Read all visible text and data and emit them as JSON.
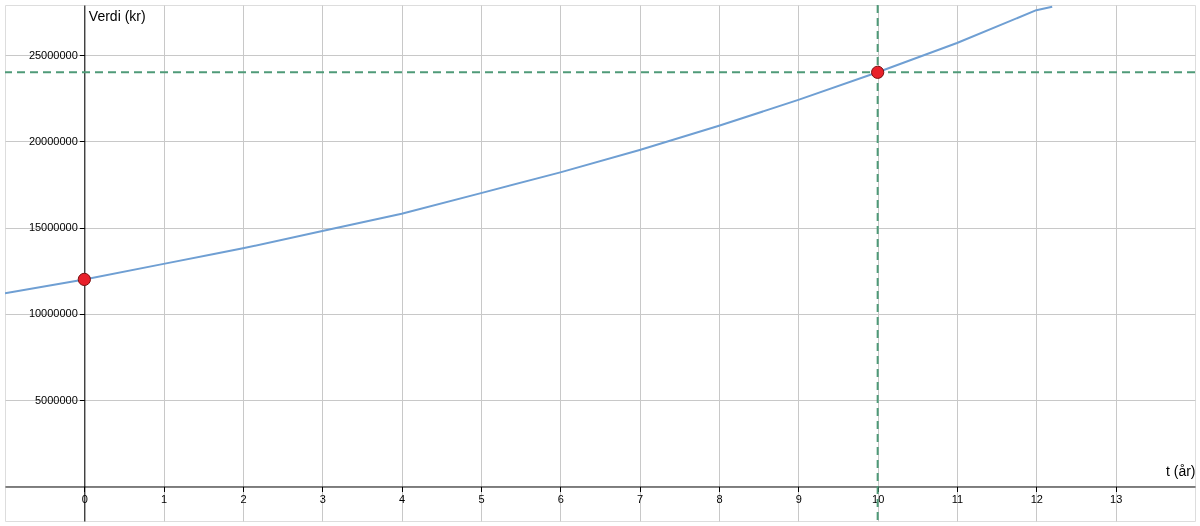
{
  "chart_data": {
    "type": "line",
    "xlabel": "t (år)",
    "ylabel": "Verdi (kr)",
    "xlim": [
      -1,
      14
    ],
    "ylim": [
      -2000000,
      27900000
    ],
    "xticks": [
      0,
      1,
      2,
      3,
      4,
      5,
      6,
      7,
      8,
      9,
      10,
      11,
      12,
      13
    ],
    "yticks": [
      5000000,
      10000000,
      15000000,
      20000000,
      25000000
    ],
    "grid": true,
    "series": [
      {
        "color": "#6f9fd3",
        "marker": "none",
        "x": [
          -1,
          0,
          1,
          2,
          3,
          4,
          5,
          6,
          7,
          8,
          9,
          10,
          11,
          12,
          12.2
        ],
        "values": [
          11200000,
          12000000,
          12900000,
          13800000,
          14800000,
          15800000,
          17000000,
          18200000,
          19500000,
          20900000,
          22400000,
          24000000,
          25700000,
          27600000,
          27800000
        ]
      },
      {
        "type": "scatter",
        "color": "#e8202a",
        "marker": "circle",
        "x": [
          0,
          10
        ],
        "values": [
          12000000,
          24000000
        ]
      }
    ],
    "ref_lines": [
      {
        "axis": "x",
        "value": 10,
        "color": "#4f9a78",
        "line_style": "dashed"
      },
      {
        "axis": "y",
        "value": 24000000,
        "color": "#4f9a78",
        "line_style": "dashed"
      }
    ]
  }
}
